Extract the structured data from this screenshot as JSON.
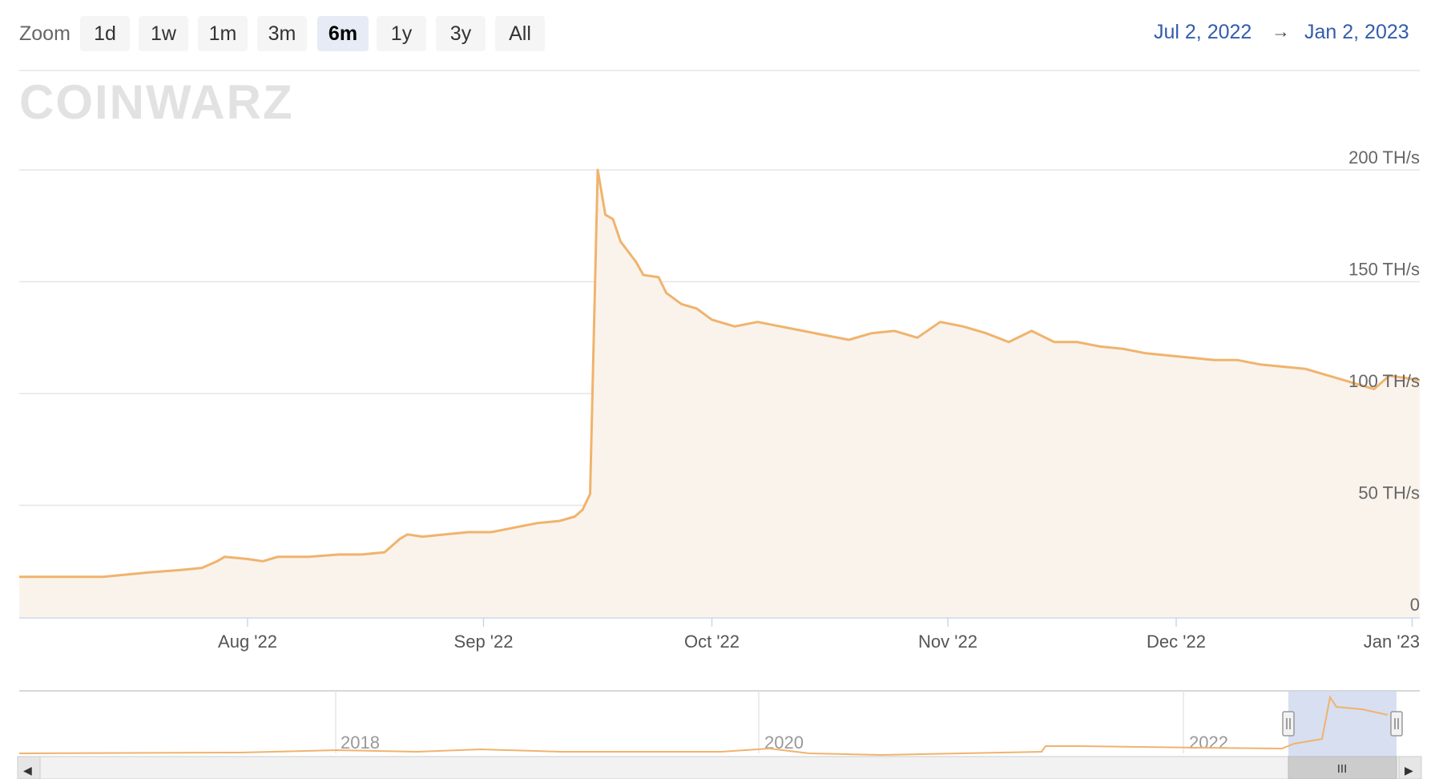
{
  "zoom": {
    "label": "Zoom",
    "buttons": [
      {
        "label": "1d",
        "active": false
      },
      {
        "label": "1w",
        "active": false
      },
      {
        "label": "1m",
        "active": false
      },
      {
        "label": "3m",
        "active": false
      },
      {
        "label": "6m",
        "active": true
      },
      {
        "label": "1y",
        "active": false
      },
      {
        "label": "3y",
        "active": false
      },
      {
        "label": "All",
        "active": false
      }
    ]
  },
  "range": {
    "from": "Jul 2, 2022",
    "arrow": "→",
    "to": "Jan 2, 2023"
  },
  "watermark": "COINWARZ",
  "colors": {
    "line": "#f0b36d",
    "fill": "#faf3ec",
    "grid": "#e6e6e6",
    "navigator_mask": "#c9d4ec"
  },
  "chart_data": {
    "type": "area",
    "x_axis": {
      "tick_labels": [
        "Aug '22",
        "Sep '22",
        "Oct '22",
        "Nov '22",
        "Dec '22",
        "Jan '23"
      ],
      "tick_dates": [
        "2022-08-01",
        "2022-09-01",
        "2022-10-01",
        "2022-11-01",
        "2022-12-01",
        "2023-01-01"
      ],
      "range": [
        "2022-07-02",
        "2023-01-02"
      ]
    },
    "y_axis": {
      "tick_labels": [
        "0",
        "50 TH/s",
        "100 TH/s",
        "150 TH/s",
        "200 TH/s"
      ],
      "ticks": [
        0,
        50,
        100,
        150,
        200
      ],
      "range": [
        0,
        220
      ]
    },
    "grid": true,
    "series": [
      {
        "points": [
          [
            "2022-07-02",
            18
          ],
          [
            "2022-07-05",
            18
          ],
          [
            "2022-07-09",
            18
          ],
          [
            "2022-07-13",
            18
          ],
          [
            "2022-07-16",
            19
          ],
          [
            "2022-07-19",
            20
          ],
          [
            "2022-07-23",
            21
          ],
          [
            "2022-07-26",
            22
          ],
          [
            "2022-07-28",
            25
          ],
          [
            "2022-07-29",
            27
          ],
          [
            "2022-08-01",
            26
          ],
          [
            "2022-08-03",
            25
          ],
          [
            "2022-08-05",
            27
          ],
          [
            "2022-08-09",
            27
          ],
          [
            "2022-08-13",
            28
          ],
          [
            "2022-08-16",
            28
          ],
          [
            "2022-08-19",
            29
          ],
          [
            "2022-08-21",
            35
          ],
          [
            "2022-08-22",
            37
          ],
          [
            "2022-08-24",
            36
          ],
          [
            "2022-08-27",
            37
          ],
          [
            "2022-08-30",
            38
          ],
          [
            "2022-09-02",
            38
          ],
          [
            "2022-09-05",
            40
          ],
          [
            "2022-09-08",
            42
          ],
          [
            "2022-09-11",
            43
          ],
          [
            "2022-09-13",
            45
          ],
          [
            "2022-09-14",
            48
          ],
          [
            "2022-09-15",
            55
          ],
          [
            "2022-09-16",
            200
          ],
          [
            "2022-09-17",
            180
          ],
          [
            "2022-09-18",
            178
          ],
          [
            "2022-09-19",
            168
          ],
          [
            "2022-09-21",
            159
          ],
          [
            "2022-09-22",
            153
          ],
          [
            "2022-09-24",
            152
          ],
          [
            "2022-09-25",
            145
          ],
          [
            "2022-09-27",
            140
          ],
          [
            "2022-09-29",
            138
          ],
          [
            "2022-10-01",
            133
          ],
          [
            "2022-10-04",
            130
          ],
          [
            "2022-10-07",
            132
          ],
          [
            "2022-10-10",
            130
          ],
          [
            "2022-10-13",
            128
          ],
          [
            "2022-10-16",
            126
          ],
          [
            "2022-10-19",
            124
          ],
          [
            "2022-10-22",
            127
          ],
          [
            "2022-10-25",
            128
          ],
          [
            "2022-10-28",
            125
          ],
          [
            "2022-10-31",
            132
          ],
          [
            "2022-11-03",
            130
          ],
          [
            "2022-11-06",
            127
          ],
          [
            "2022-11-09",
            123
          ],
          [
            "2022-11-12",
            128
          ],
          [
            "2022-11-15",
            123
          ],
          [
            "2022-11-18",
            123
          ],
          [
            "2022-11-21",
            121
          ],
          [
            "2022-11-24",
            120
          ],
          [
            "2022-11-27",
            118
          ],
          [
            "2022-11-30",
            117
          ],
          [
            "2022-12-03",
            116
          ],
          [
            "2022-12-06",
            115
          ],
          [
            "2022-12-09",
            115
          ],
          [
            "2022-12-12",
            113
          ],
          [
            "2022-12-15",
            112
          ],
          [
            "2022-12-18",
            111
          ],
          [
            "2022-12-21",
            108
          ],
          [
            "2022-12-24",
            105
          ],
          [
            "2022-12-27",
            102
          ],
          [
            "2022-12-29",
            108
          ],
          [
            "2022-12-31",
            107
          ],
          [
            "2023-01-02",
            106
          ]
        ]
      }
    ]
  },
  "navigator": {
    "year_labels": [
      "2018",
      "2020",
      "2022"
    ],
    "grip_glyph": "III",
    "left_arrow": "◀",
    "right_arrow": "▶"
  }
}
